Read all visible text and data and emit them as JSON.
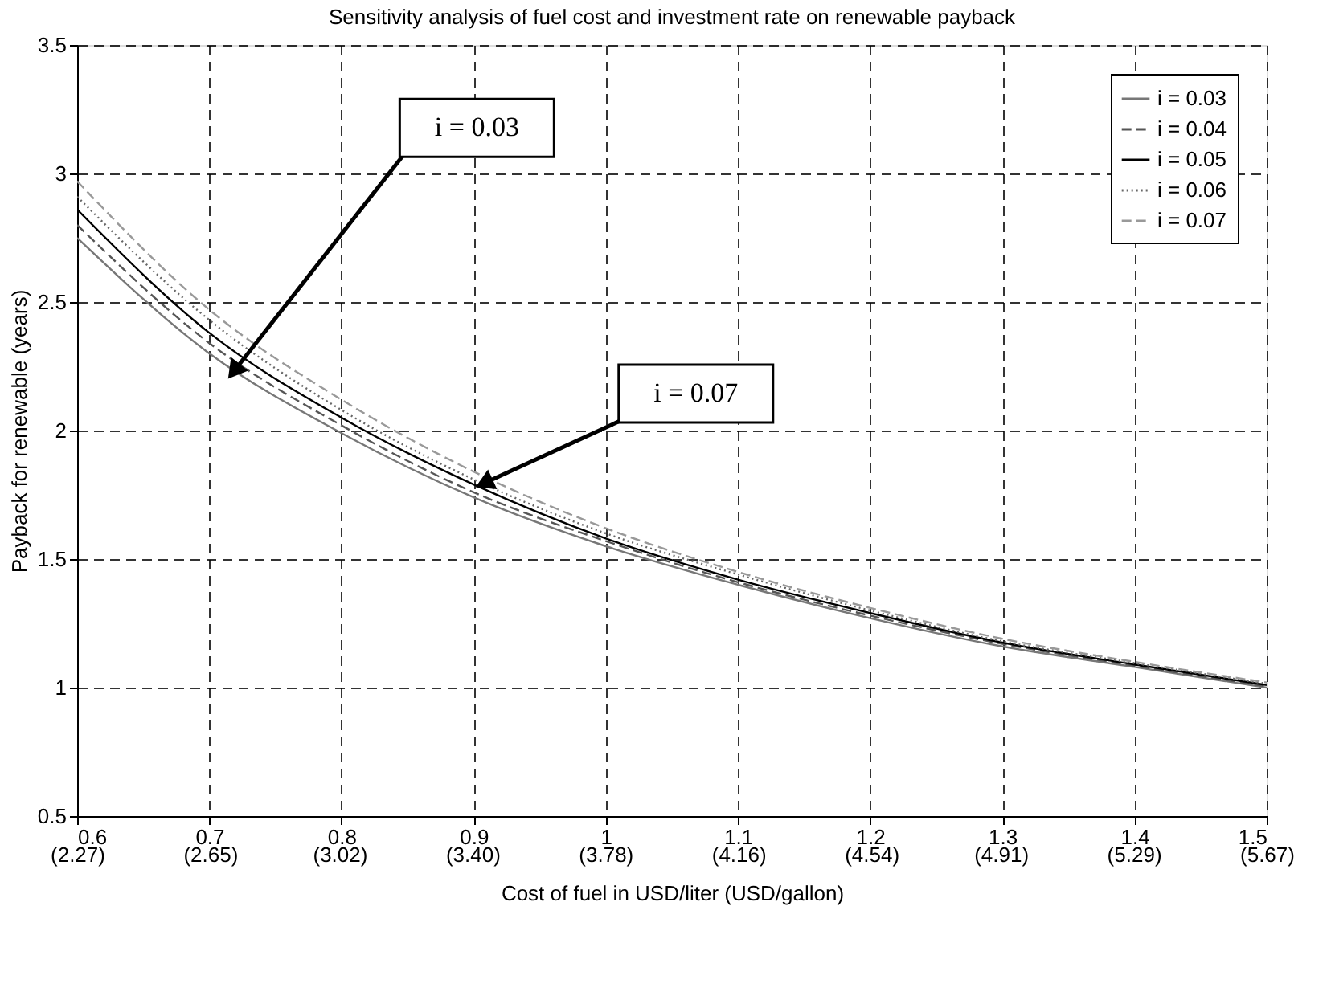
{
  "chart_data": {
    "type": "line",
    "title": "Sensitivity analysis of fuel cost and investment rate on renewable payback",
    "xlabel": "Cost of fuel in USD/liter (USD/gallon)",
    "ylabel": "Payback for renewable (years)",
    "x": [
      0.6,
      0.7,
      0.8,
      0.9,
      1,
      1.1,
      1.2,
      1.3,
      1.4,
      1.5
    ],
    "series": [
      {
        "name": "i = 0.03",
        "color": "#777777",
        "line_style": "solid",
        "values": [
          2.75,
          2.3,
          1.99,
          1.74,
          1.55,
          1.4,
          1.27,
          1.16,
          1.08,
          1.0
        ]
      },
      {
        "name": "i = 0.04",
        "color": "#555555",
        "line_style": "dashed",
        "values": [
          2.8,
          2.34,
          2.02,
          1.76,
          1.57,
          1.41,
          1.28,
          1.17,
          1.085,
          1.005
        ]
      },
      {
        "name": "i = 0.05",
        "color": "#000000",
        "line_style": "solid",
        "values": [
          2.86,
          2.38,
          2.05,
          1.79,
          1.58,
          1.42,
          1.29,
          1.175,
          1.09,
          1.01
        ]
      },
      {
        "name": "i = 0.06",
        "color": "#666666",
        "line_style": "dotted",
        "values": [
          2.91,
          2.43,
          2.08,
          1.81,
          1.6,
          1.44,
          1.3,
          1.18,
          1.095,
          1.015
        ]
      },
      {
        "name": "i = 0.07",
        "color": "#999999",
        "line_style": "dashed",
        "values": [
          2.97,
          2.47,
          2.12,
          1.84,
          1.62,
          1.45,
          1.31,
          1.19,
          1.1,
          1.02
        ]
      }
    ],
    "xlim": [
      0.6,
      1.5
    ],
    "xticks": [
      0.6,
      0.7,
      0.8,
      0.9,
      1,
      1.1,
      1.2,
      1.3,
      1.4,
      1.5
    ],
    "x2lim": [
      2.27,
      5.67
    ],
    "x2ticks": [
      {
        "value": 2.27,
        "label": "(2.27)"
      },
      {
        "value": 2.65,
        "label": "(2.65)"
      },
      {
        "value": 3.02,
        "label": "(3.02)"
      },
      {
        "value": 3.4,
        "label": "(3.40)"
      },
      {
        "value": 3.78,
        "label": "(3.78)"
      },
      {
        "value": 4.16,
        "label": "(4.16)"
      },
      {
        "value": 4.54,
        "label": "(4.54)"
      },
      {
        "value": 4.91,
        "label": "(4.91)"
      },
      {
        "value": 5.29,
        "label": "(5.29)"
      },
      {
        "value": 5.67,
        "label": "(5.67)"
      }
    ],
    "ylim": [
      0.5,
      3.5
    ],
    "yticks": [
      0.5,
      1,
      1.5,
      2,
      2.5,
      3,
      3.5
    ],
    "annotations": [
      {
        "text": "i = 0.03",
        "x": 0.72,
        "y": 2.24
      },
      {
        "text": "i = 0.07",
        "x": 0.91,
        "y": 1.8
      }
    ],
    "grid": true,
    "legend": "top right"
  }
}
